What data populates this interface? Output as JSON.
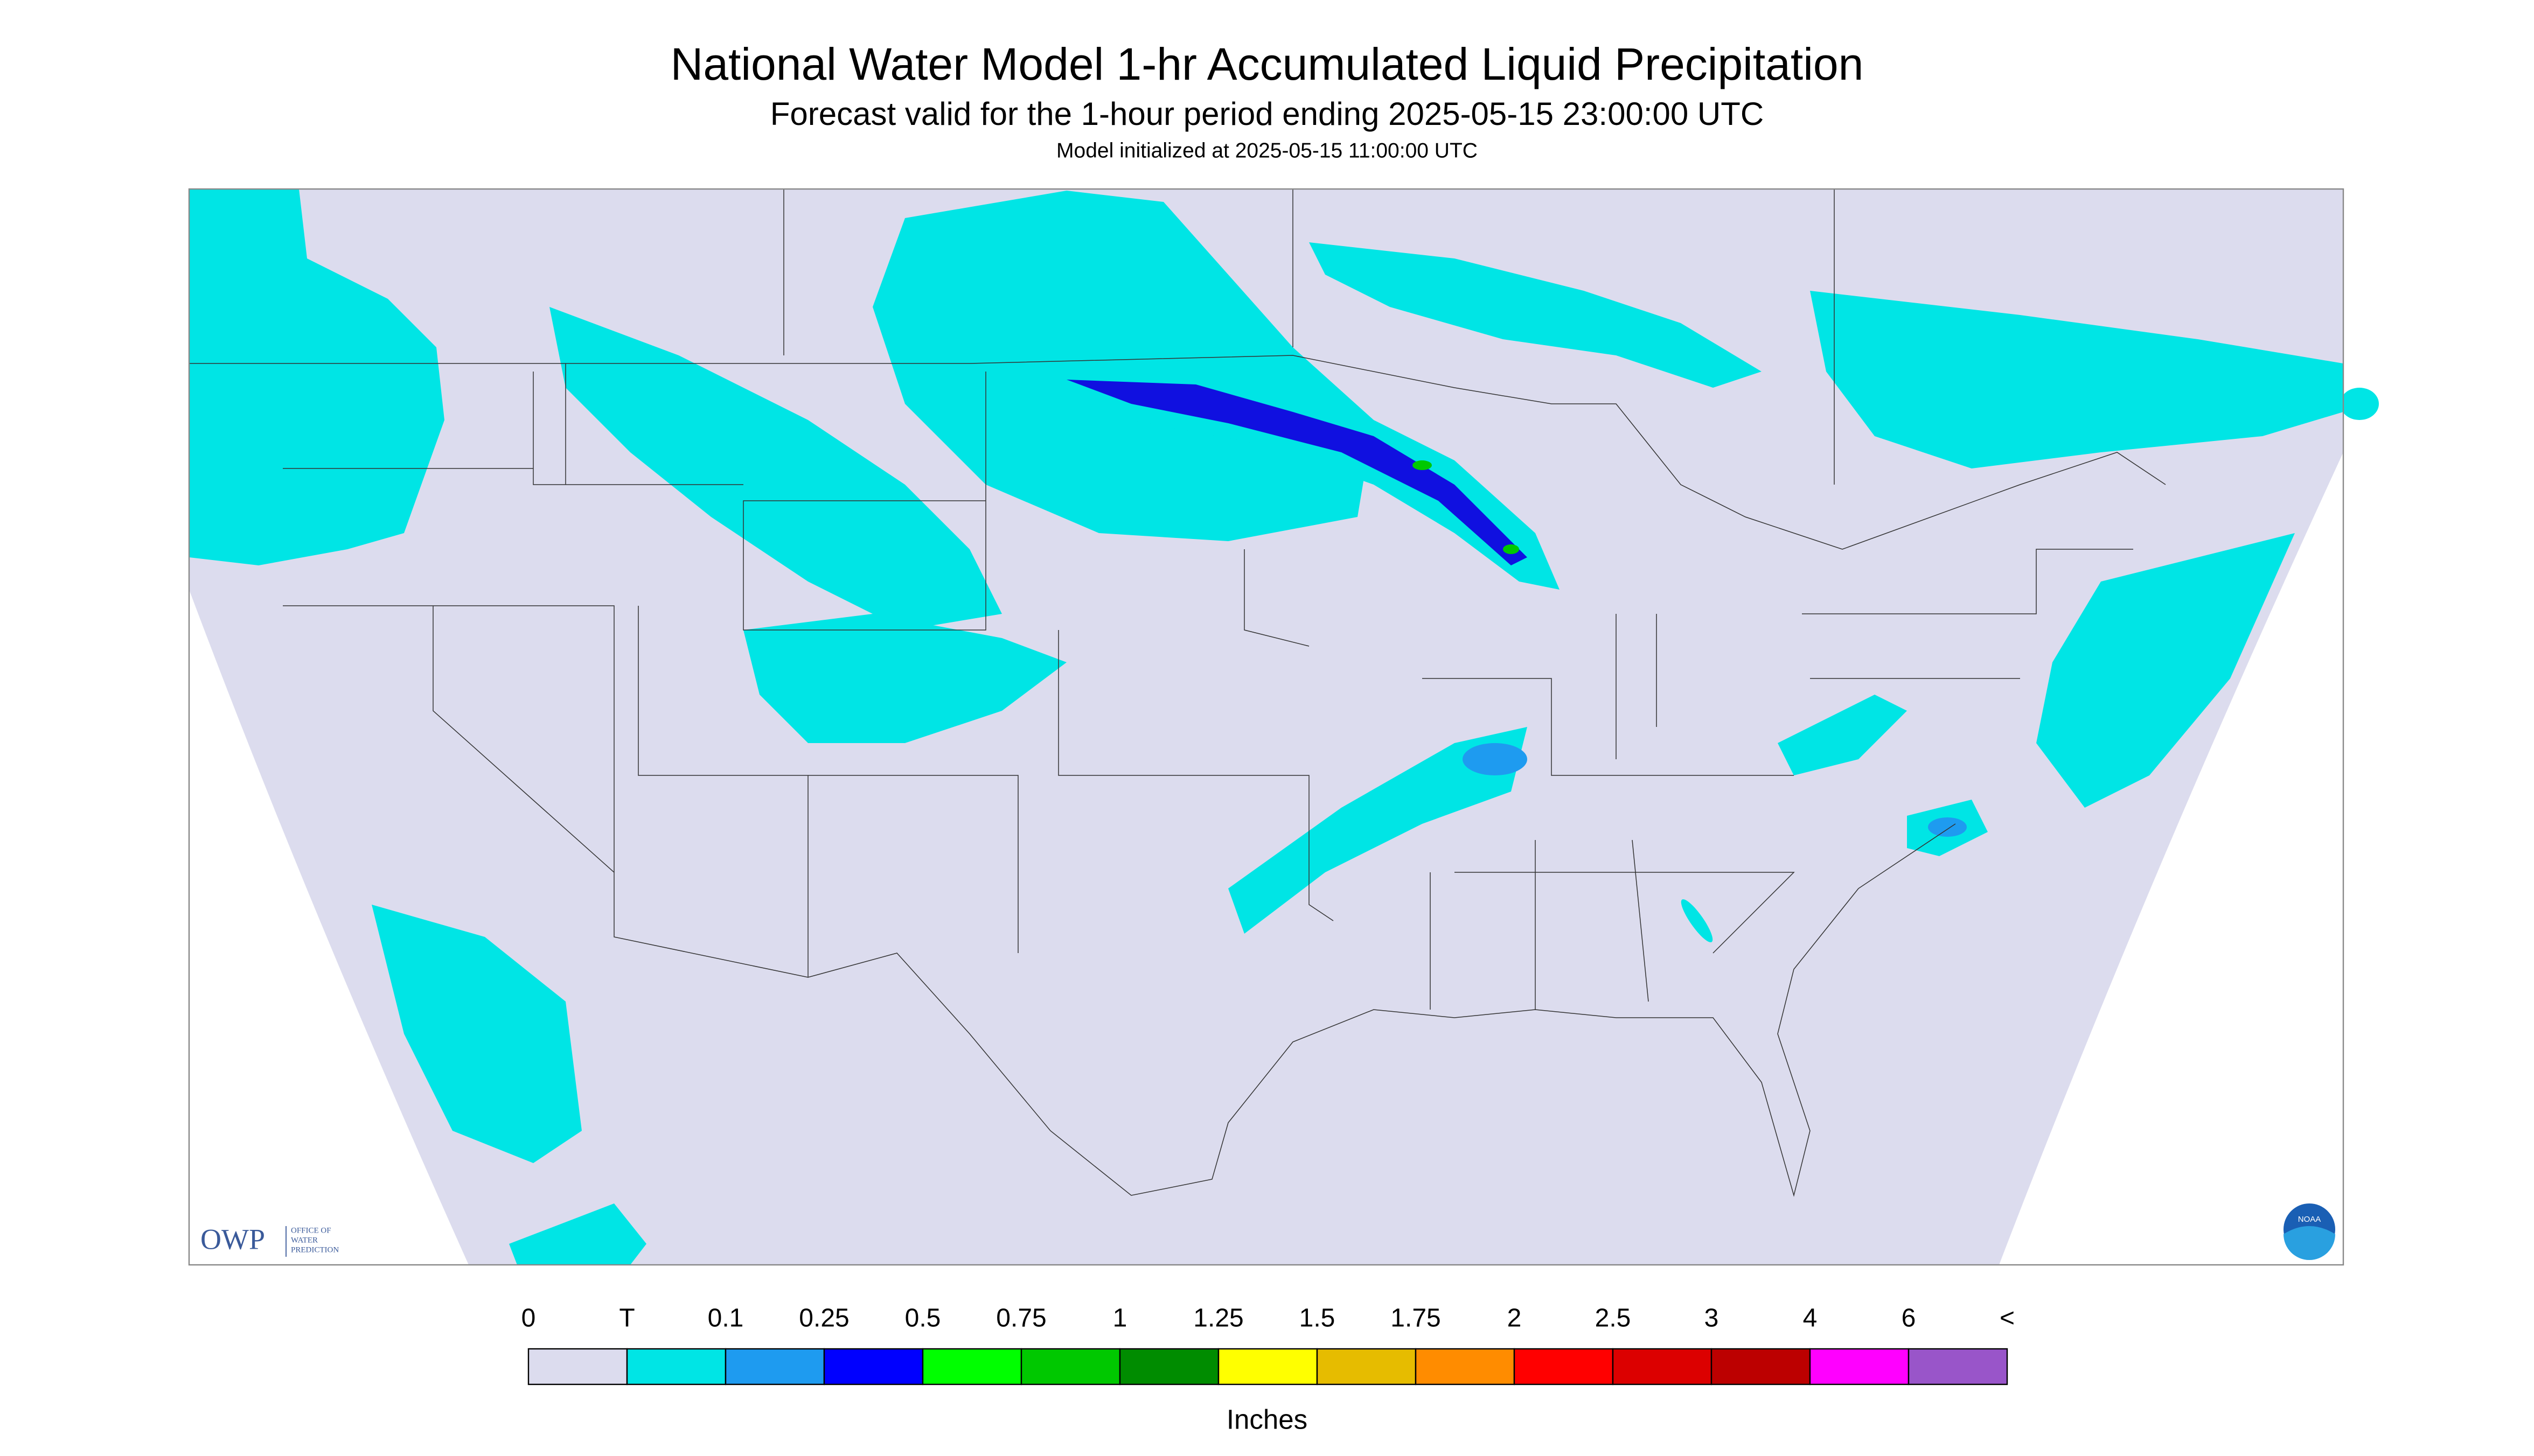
{
  "header": {
    "title": "National Water Model 1-hr Accumulated Liquid Precipitation",
    "subtitle": "Forecast valid for the 1-hour period ending 2025-05-15 23:00:00 UTC",
    "init": "Model initialized at 2025-05-15 11:00:00 UTC"
  },
  "logos": {
    "owp": "OWP",
    "owp_lines": [
      "OFFICE OF",
      "WATER",
      "PREDICTION"
    ],
    "noaa": "NOAA"
  },
  "legend": {
    "labels": [
      "0",
      "T",
      "0.1",
      "0.25",
      "0.5",
      "0.75",
      "1",
      "1.25",
      "1.5",
      "1.75",
      "2",
      "2.5",
      "3",
      "4",
      "6",
      "<"
    ],
    "colors": [
      "#dcdcee",
      "#00e5e5",
      "#1e9bf0",
      "#0000ff",
      "#00ff00",
      "#00c800",
      "#008c00",
      "#ffff00",
      "#e6bc00",
      "#ff8c00",
      "#ff0000",
      "#dc0000",
      "#bc0000",
      "#ff00ff",
      "#9955c9"
    ],
    "unit": "Inches"
  }
}
